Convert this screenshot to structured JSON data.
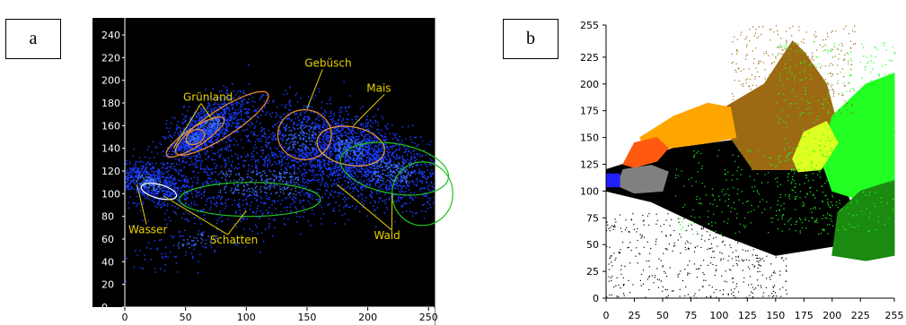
{
  "panels": {
    "a_label": "a",
    "b_label": "b"
  },
  "chart_data": [
    {
      "type": "scatter",
      "panel": "a",
      "title": "",
      "xlabel": "",
      "ylabel": "",
      "xlim": [
        0,
        255
      ],
      "ylim": [
        0,
        255
      ],
      "x_ticks": [
        0,
        50,
        100,
        150,
        200,
        250
      ],
      "x_tick_labels": [
        "0",
        "50",
        "100",
        "150",
        "200",
        "250"
      ],
      "y_ticks": [
        0,
        20,
        40,
        60,
        80,
        100,
        120,
        140,
        160,
        180,
        200,
        220,
        240
      ],
      "background": "#000000",
      "point_color": "#1a3cff",
      "clusters": [
        {
          "cx": 20,
          "cy": 110,
          "sx": 18,
          "sy": 8,
          "n": 700,
          "rot": -20
        },
        {
          "cx": 70,
          "cy": 160,
          "sx": 18,
          "sy": 10,
          "n": 900,
          "rot": 35
        },
        {
          "cx": 55,
          "cy": 148,
          "sx": 10,
          "sy": 6,
          "n": 400,
          "rot": 30
        },
        {
          "cx": 145,
          "cy": 150,
          "sx": 22,
          "sy": 18,
          "n": 700,
          "rot": 0
        },
        {
          "cx": 185,
          "cy": 140,
          "sx": 20,
          "sy": 14,
          "n": 900,
          "rot": -10
        },
        {
          "cx": 220,
          "cy": 120,
          "sx": 28,
          "sy": 15,
          "n": 900,
          "rot": -5
        },
        {
          "cx": 110,
          "cy": 110,
          "sx": 55,
          "sy": 18,
          "n": 1100,
          "rot": 0
        },
        {
          "cx": 60,
          "cy": 60,
          "sx": 30,
          "sy": 10,
          "n": 150,
          "rot": 20
        }
      ],
      "regions": [
        {
          "name": "Grünland",
          "cx": 58,
          "cy": 150,
          "rx": 28,
          "ry": 8,
          "rot": 33,
          "color": "#f09030"
        },
        {
          "name": "Grünland-inner",
          "cx": 58,
          "cy": 150,
          "rx": 8,
          "ry": 6,
          "rot": 30,
          "color": "#f09030"
        },
        {
          "name": "Grünland-outer",
          "cx": 80,
          "cy": 162,
          "rx": 45,
          "ry": 12,
          "rot": 33,
          "color": "#f09030"
        },
        {
          "name": "Gebüsch",
          "cx": 148,
          "cy": 152,
          "rx": 22,
          "ry": 22,
          "rot": 0,
          "color": "#f09030"
        },
        {
          "name": "Mais",
          "cx": 186,
          "cy": 142,
          "rx": 28,
          "ry": 17,
          "rot": -10,
          "color": "#f0a040"
        },
        {
          "name": "Wald-1",
          "cx": 222,
          "cy": 122,
          "rx": 45,
          "ry": 22,
          "rot": -10,
          "color": "#20c020"
        },
        {
          "name": "Wald-2",
          "cx": 245,
          "cy": 100,
          "rx": 25,
          "ry": 28,
          "rot": 0,
          "color": "#20c020"
        },
        {
          "name": "Schatten",
          "cx": 103,
          "cy": 95,
          "rx": 58,
          "ry": 15,
          "rot": 0,
          "color": "#20c020"
        },
        {
          "name": "Wasser",
          "cx": 28,
          "cy": 102,
          "rx": 15,
          "ry": 6,
          "rot": -15,
          "color": "#ffffff"
        }
      ],
      "annotations": [
        {
          "text": "Grünland",
          "x": 48,
          "y": 182,
          "arrows": [
            [
              40,
              140
            ],
            [
              72,
              165
            ]
          ]
        },
        {
          "text": "Gebüsch",
          "x": 148,
          "y": 212,
          "arrows": [
            [
              150,
              175
            ]
          ]
        },
        {
          "text": "Mais",
          "x": 199,
          "y": 190,
          "arrows": [
            [
              188,
              160
            ]
          ]
        },
        {
          "text": "Wasser",
          "x": 3,
          "y": 65,
          "arrows": [
            [
              10,
              108
            ]
          ]
        },
        {
          "text": "Schatten",
          "x": 70,
          "y": 56,
          "arrows": [
            [
              32,
              98
            ],
            [
              100,
              85
            ]
          ]
        },
        {
          "text": "Wald",
          "x": 205,
          "y": 60,
          "arrows": [
            [
              175,
              108
            ],
            [
              220,
              100
            ]
          ]
        }
      ]
    },
    {
      "type": "scatter",
      "panel": "b",
      "title": "",
      "xlabel": "",
      "ylabel": "",
      "xlim": [
        0,
        255
      ],
      "ylim": [
        0,
        255
      ],
      "x_ticks": [
        0,
        25,
        50,
        75,
        100,
        125,
        150,
        175,
        200,
        225,
        255
      ],
      "x_tick_labels": [
        "0",
        "25",
        "50",
        "75",
        "100",
        "125",
        "150",
        "175",
        "200",
        "225",
        "255"
      ],
      "y_ticks": [
        0,
        25,
        50,
        75,
        100,
        125,
        150,
        175,
        200,
        225,
        255
      ],
      "y_tick_labels": [
        "0",
        "25",
        "50",
        "75",
        "100",
        "125",
        "150",
        "175",
        "200",
        "225",
        "255"
      ],
      "background": "#ffffff",
      "classes": [
        {
          "color": "#000000",
          "poly": [
            [
              0,
              120
            ],
            [
              60,
              140
            ],
            [
              130,
              150
            ],
            [
              200,
              130
            ],
            [
              220,
              80
            ],
            [
              210,
              50
            ],
            [
              150,
              40
            ],
            [
              100,
              60
            ],
            [
              40,
              90
            ],
            [
              0,
              100
            ]
          ]
        },
        {
          "color": "#9b6a12",
          "poly": [
            [
              100,
              175
            ],
            [
              140,
              200
            ],
            [
              165,
              240
            ],
            [
              175,
              230
            ],
            [
              195,
              200
            ],
            [
              205,
              160
            ],
            [
              180,
              120
            ],
            [
              130,
              120
            ],
            [
              110,
              150
            ]
          ]
        },
        {
          "color": "#ffa500",
          "poly": [
            [
              30,
              150
            ],
            [
              60,
              170
            ],
            [
              90,
              182
            ],
            [
              110,
              178
            ],
            [
              115,
              150
            ],
            [
              90,
              145
            ],
            [
              55,
              140
            ],
            [
              35,
              138
            ]
          ]
        },
        {
          "color": "#ff5a10",
          "poly": [
            [
              15,
              125
            ],
            [
              25,
              145
            ],
            [
              45,
              150
            ],
            [
              55,
              140
            ],
            [
              45,
              128
            ],
            [
              25,
              122
            ]
          ]
        },
        {
          "color": "#22ff22",
          "poly": [
            [
              190,
              130
            ],
            [
              200,
              170
            ],
            [
              230,
              200
            ],
            [
              255,
              210
            ],
            [
              255,
              100
            ],
            [
              230,
              90
            ],
            [
              200,
              100
            ]
          ]
        },
        {
          "color": "#ddff22",
          "poly": [
            [
              165,
              130
            ],
            [
              175,
              155
            ],
            [
              195,
              165
            ],
            [
              205,
              145
            ],
            [
              190,
              120
            ],
            [
              170,
              118
            ]
          ]
        },
        {
          "color": "#1a8a10",
          "poly": [
            [
              200,
              40
            ],
            [
              205,
              80
            ],
            [
              225,
              100
            ],
            [
              255,
              110
            ],
            [
              255,
              40
            ],
            [
              230,
              35
            ]
          ]
        },
        {
          "color": "#808080",
          "poly": [
            [
              10,
              105
            ],
            [
              15,
              120
            ],
            [
              40,
              124
            ],
            [
              55,
              118
            ],
            [
              50,
              100
            ],
            [
              25,
              98
            ]
          ]
        },
        {
          "color": "#2020ff",
          "poly": [
            [
              0,
              104
            ],
            [
              0,
              116
            ],
            [
              12,
              116
            ],
            [
              12,
              104
            ]
          ]
        }
      ]
    }
  ]
}
